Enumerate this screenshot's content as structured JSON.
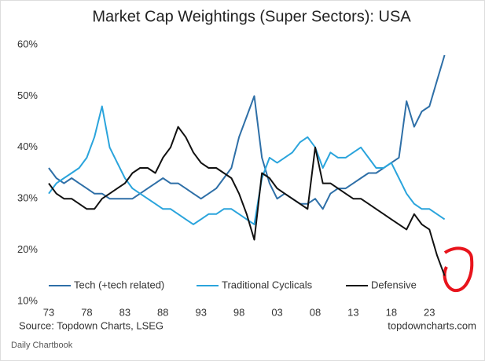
{
  "chart_data": {
    "type": "line",
    "title": "Market Cap Weightings (Super Sectors): USA",
    "source": "Source: Topdown Charts, LSEG",
    "site": "topdowncharts.com",
    "footer": "Daily Chartbook",
    "x": [
      1973,
      1974,
      1975,
      1976,
      1977,
      1978,
      1979,
      1980,
      1981,
      1982,
      1983,
      1984,
      1985,
      1986,
      1987,
      1988,
      1989,
      1990,
      1991,
      1992,
      1993,
      1994,
      1995,
      1996,
      1997,
      1998,
      1999,
      2000,
      2001,
      2002,
      2003,
      2004,
      2005,
      2006,
      2007,
      2008,
      2009,
      2010,
      2011,
      2012,
      2013,
      2014,
      2015,
      2016,
      2017,
      2018,
      2019,
      2020,
      2021,
      2022,
      2023,
      2024,
      2025
    ],
    "series": [
      {
        "name": "Tech (+tech related)",
        "color": "#2e6fa7",
        "values": [
          36,
          34,
          33,
          34,
          33,
          32,
          31,
          31,
          30,
          30,
          30,
          30,
          31,
          32,
          33,
          34,
          33,
          33,
          32,
          31,
          30,
          31,
          32,
          34,
          36,
          42,
          46,
          50,
          38,
          33,
          30,
          31,
          30,
          29,
          29,
          30,
          28,
          31,
          32,
          32,
          33,
          34,
          35,
          35,
          36,
          37,
          38,
          49,
          44,
          47,
          48,
          53,
          58
        ]
      },
      {
        "name": "Traditional Cyclicals",
        "color": "#2aa4dc",
        "values": [
          31,
          33,
          34,
          35,
          36,
          38,
          42,
          48,
          40,
          37,
          34,
          32,
          31,
          30,
          29,
          28,
          28,
          27,
          26,
          25,
          26,
          27,
          27,
          28,
          28,
          27,
          26,
          25,
          34,
          38,
          37,
          38,
          39,
          41,
          42,
          40,
          36,
          39,
          38,
          38,
          39,
          40,
          38,
          36,
          36,
          37,
          34,
          31,
          29,
          28,
          28,
          27,
          26
        ]
      },
      {
        "name": "Defensive",
        "color": "#111111",
        "values": [
          33,
          31,
          30,
          30,
          29,
          28,
          28,
          30,
          31,
          32,
          33,
          35,
          36,
          36,
          35,
          38,
          40,
          44,
          42,
          39,
          37,
          36,
          36,
          35,
          34,
          31,
          27,
          22,
          35,
          34,
          32,
          31,
          30,
          29,
          28,
          40,
          33,
          33,
          32,
          31,
          30,
          30,
          29,
          28,
          27,
          26,
          25,
          24,
          27,
          25,
          24,
          19,
          15
        ]
      }
    ],
    "xlim": [
      1973,
      2027
    ],
    "xticks": [
      {
        "value": 1973,
        "label": "73"
      },
      {
        "value": 1978,
        "label": "78"
      },
      {
        "value": 1983,
        "label": "83"
      },
      {
        "value": 1988,
        "label": "88"
      },
      {
        "value": 1993,
        "label": "93"
      },
      {
        "value": 1998,
        "label": "98"
      },
      {
        "value": 2003,
        "label": "03"
      },
      {
        "value": 2008,
        "label": "08"
      },
      {
        "value": 2013,
        "label": "13"
      },
      {
        "value": 2018,
        "label": "18"
      },
      {
        "value": 2023,
        "label": "23"
      }
    ],
    "ylim": [
      10,
      60
    ],
    "yticks": [
      {
        "value": 10,
        "label": "10%"
      },
      {
        "value": 20,
        "label": "20%"
      },
      {
        "value": 30,
        "label": "30%"
      },
      {
        "value": 40,
        "label": "40%"
      },
      {
        "value": 50,
        "label": "50%"
      },
      {
        "value": 60,
        "label": "60%"
      }
    ]
  }
}
